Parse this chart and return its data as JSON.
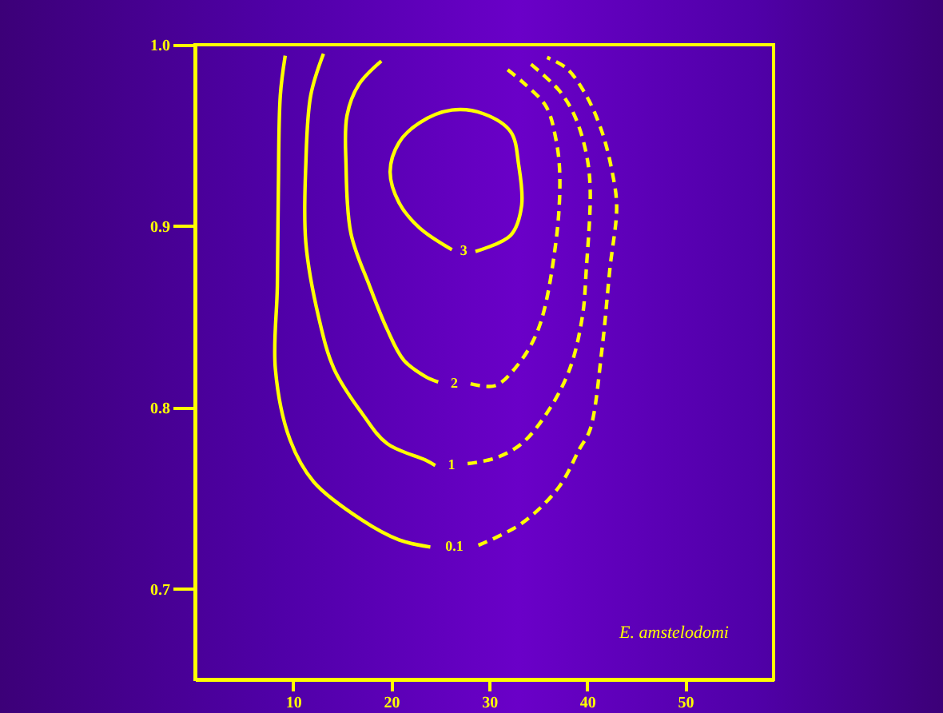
{
  "chart_data": {
    "type": "line",
    "xlim": [
      0,
      59
    ],
    "xticks": [
      10,
      20,
      30,
      40,
      50
    ],
    "ylim": [
      0.65,
      1.0
    ],
    "yticks": [
      0.7,
      0.8,
      0.9,
      {
        "value": 1.0,
        "label": "1.0"
      }
    ],
    "grid": false,
    "annotations": [
      "E. amstelodomi"
    ],
    "series": [
      {
        "name": "0.1",
        "color": "#ffff00",
        "line_style": "solid",
        "x": [
          9.2,
          8.7,
          8.5,
          8.4,
          8.2,
          9.7,
          12.1,
          17.0,
          20.8,
          24.0
        ],
        "values": [
          0.994,
          0.972,
          0.92,
          0.867,
          0.821,
          0.782,
          0.759,
          0.738,
          0.727,
          0.723
        ]
      },
      {
        "color": "#ffff00",
        "line_style": "dashed",
        "x": [
          28.9,
          33.3,
          37.1,
          39.2,
          40.3,
          41.5,
          42.3,
          43.0,
          42.5,
          41.5,
          39.9,
          37.9,
          35.9
        ],
        "values": [
          0.724,
          0.736,
          0.756,
          0.777,
          0.788,
          0.832,
          0.876,
          0.911,
          0.931,
          0.952,
          0.972,
          0.987,
          0.993
        ]
      },
      {
        "name": "1",
        "color": "#ffff00",
        "line_style": "solid",
        "x": [
          13.1,
          11.8,
          11.3,
          11.3,
          12.6,
          14.2,
          17.0,
          19.6,
          23.5,
          24.5
        ],
        "values": [
          0.995,
          0.972,
          0.934,
          0.891,
          0.85,
          0.821,
          0.797,
          0.78,
          0.771,
          0.768
        ]
      },
      {
        "color": "#ffff00",
        "line_style": "dashed",
        "x": [
          27.8,
          30.6,
          33.3,
          35.9,
          38.2,
          39.5,
          39.9,
          40.3,
          39.9,
          38.7,
          37.1,
          34.1
        ],
        "values": [
          0.769,
          0.772,
          0.78,
          0.797,
          0.821,
          0.85,
          0.876,
          0.92,
          0.94,
          0.961,
          0.975,
          0.99
        ]
      },
      {
        "name": "2",
        "color": "#ffff00",
        "line_style": "solid",
        "x": [
          19.0,
          16.7,
          15.5,
          15.4,
          15.9,
          17.8,
          19.6,
          21.3,
          23.5,
          24.8
        ],
        "values": [
          0.991,
          0.978,
          0.961,
          0.934,
          0.896,
          0.867,
          0.843,
          0.826,
          0.817,
          0.814
        ]
      },
      {
        "color": "#ffff00",
        "line_style": "dashed",
        "x": [
          28.1,
          30.6,
          32.7,
          35.0,
          36.8,
          37.2,
          36.8,
          35.8,
          33.5,
          31.7
        ],
        "values": [
          0.813,
          0.812,
          0.822,
          0.843,
          0.891,
          0.928,
          0.948,
          0.966,
          0.979,
          0.987
        ]
      },
      {
        "name": "3",
        "color": "#ffff00",
        "line_style": "solid",
        "x": [
          28.6,
          32.2,
          33.3,
          33.0,
          32.2,
          29.4,
          26.2,
          22.9,
          20.8,
          19.9,
          20.8,
          22.9,
          26.2
        ],
        "values": [
          0.886,
          0.895,
          0.911,
          0.934,
          0.952,
          0.962,
          0.964,
          0.957,
          0.946,
          0.93,
          0.913,
          0.899,
          0.887
        ]
      }
    ]
  }
}
